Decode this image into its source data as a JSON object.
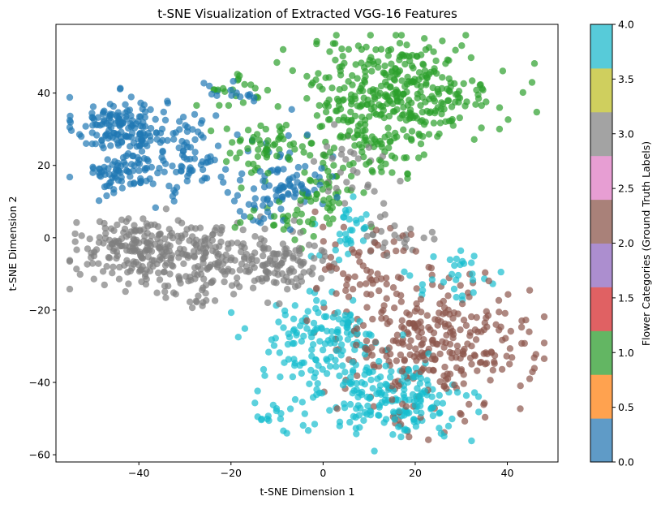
{
  "chart_data": {
    "type": "scatter",
    "title": "t-SNE Visualization of Extracted VGG-16 Features",
    "xlabel": "t-SNE Dimension 1",
    "ylabel": "t-SNE Dimension 2",
    "xlim": [
      -58,
      51
    ],
    "ylim": [
      -62,
      59
    ],
    "xticks": [
      -40,
      -20,
      0,
      20,
      40
    ],
    "yticks": [
      -60,
      -40,
      -20,
      0,
      20,
      40
    ],
    "grid": false,
    "marker_alpha": 0.7,
    "colormap": "tab10",
    "colorbar": {
      "label": "Flower Categories (Ground Truth Labels)",
      "range": [
        0.0,
        4.0
      ],
      "ticks": [
        "0.0",
        "0.5",
        "1.0",
        "1.5",
        "2.0",
        "2.5",
        "3.0",
        "3.5",
        "4.0"
      ],
      "bands": [
        "#5f9bc7",
        "#ffa24f",
        "#63b663",
        "#e06163",
        "#ac8ecf",
        "#a98179",
        "#e79ed3",
        "#a3a3a3",
        "#cfcf5e",
        "#57cbd9"
      ]
    },
    "series_colors": {
      "0": "#1f77b4",
      "1": "#2ca02c",
      "2": "#8c564b",
      "3": "#7f7f7f",
      "4": "#17becf"
    },
    "clusters": [
      {
        "label": 0,
        "center": [
          -44,
          31
        ],
        "spread": [
          5,
          4
        ],
        "count": 150
      },
      {
        "label": 0,
        "center": [
          -44,
          18
        ],
        "spread": [
          4,
          3
        ],
        "count": 70
      },
      {
        "label": 0,
        "center": [
          -29,
          22
        ],
        "spread": [
          5,
          6
        ],
        "count": 90
      },
      {
        "label": 0,
        "center": [
          -10,
          13
        ],
        "spread": [
          5,
          5
        ],
        "count": 70
      },
      {
        "label": 0,
        "center": [
          -20,
          41
        ],
        "spread": [
          4,
          2
        ],
        "count": 15
      },
      {
        "label": 0,
        "center": [
          -2,
          20
        ],
        "spread": [
          6,
          8
        ],
        "count": 20
      },
      {
        "label": 1,
        "center": [
          17,
          41
        ],
        "spread": [
          10,
          7
        ],
        "count": 330
      },
      {
        "label": 1,
        "center": [
          10,
          28
        ],
        "spread": [
          7,
          6
        ],
        "count": 90
      },
      {
        "label": 1,
        "center": [
          -12,
          25
        ],
        "spread": [
          6,
          4
        ],
        "count": 60
      },
      {
        "label": 1,
        "center": [
          1,
          13
        ],
        "spread": [
          3,
          4
        ],
        "count": 40
      },
      {
        "label": 1,
        "center": [
          -20,
          40
        ],
        "spread": [
          4,
          3
        ],
        "count": 20
      },
      {
        "label": 1,
        "center": [
          -7,
          5
        ],
        "spread": [
          6,
          3
        ],
        "count": 30
      },
      {
        "label": 2,
        "center": [
          25,
          -29
        ],
        "spread": [
          10,
          8
        ],
        "count": 280
      },
      {
        "label": 2,
        "center": [
          10,
          -10
        ],
        "spread": [
          7,
          8
        ],
        "count": 70
      },
      {
        "label": 2,
        "center": [
          20,
          -50
        ],
        "spread": [
          6,
          4
        ],
        "count": 20
      },
      {
        "label": 3,
        "center": [
          -40,
          -3
        ],
        "spread": [
          7,
          4
        ],
        "count": 180
      },
      {
        "label": 3,
        "center": [
          -27,
          -7
        ],
        "spread": [
          7,
          6
        ],
        "count": 150
      },
      {
        "label": 3,
        "center": [
          -10,
          -7
        ],
        "spread": [
          6,
          5
        ],
        "count": 110
      },
      {
        "label": 3,
        "center": [
          5,
          19
        ],
        "spread": [
          5,
          6
        ],
        "count": 30
      },
      {
        "label": 3,
        "center": [
          16,
          0
        ],
        "spread": [
          4,
          4
        ],
        "count": 25
      },
      {
        "label": 4,
        "center": [
          -1,
          -30
        ],
        "spread": [
          7,
          7
        ],
        "count": 150
      },
      {
        "label": 4,
        "center": [
          15,
          -45
        ],
        "spread": [
          8,
          5
        ],
        "count": 180
      },
      {
        "label": 4,
        "center": [
          5,
          0
        ],
        "spread": [
          3,
          4
        ],
        "count": 30
      },
      {
        "label": 4,
        "center": [
          30,
          -10
        ],
        "spread": [
          5,
          5
        ],
        "count": 30
      },
      {
        "label": 4,
        "center": [
          -10,
          -50
        ],
        "spread": [
          5,
          2
        ],
        "count": 15
      }
    ]
  }
}
